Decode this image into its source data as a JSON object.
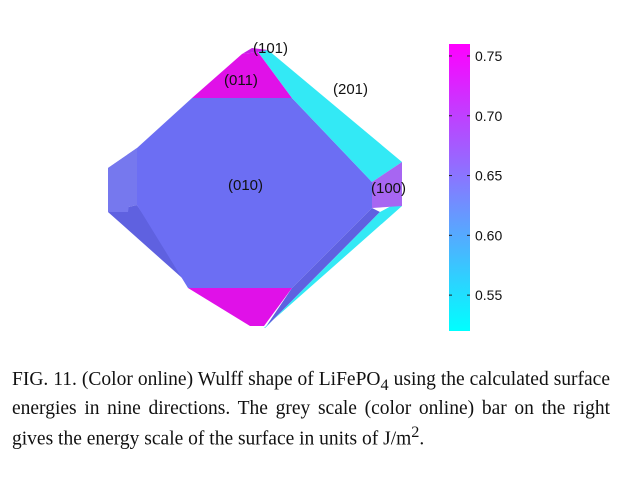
{
  "figure": {
    "facets": {
      "f010": "(010)",
      "f011": "(011)",
      "f101": "(101)",
      "f201": "(201)",
      "f100": "(100)"
    },
    "colors": {
      "facet_010": "#6c6ef3",
      "facet_011": "#e011e8",
      "facet_101": "#c61ee6",
      "facet_201": "#33e9f5",
      "facet_100": "#a766f2",
      "side_dark": "#5f61e0",
      "side_light": "#7678ee",
      "colorbar_top": "#ff00ff",
      "colorbar_bottom": "#00ffff"
    },
    "colorbar": {
      "min": 0.52,
      "max": 0.76,
      "ticks": [
        {
          "value": 0.75,
          "label": "0.75"
        },
        {
          "value": 0.7,
          "label": "0.70"
        },
        {
          "value": 0.65,
          "label": "0.65"
        },
        {
          "value": 0.6,
          "label": "0.60"
        },
        {
          "value": 0.55,
          "label": "0.55"
        }
      ]
    }
  },
  "caption": {
    "label": "FIG. 11.",
    "text_before_sub": " (Color online) Wulff shape of LiFePO",
    "subscript": "4",
    "text_after_sub": " using the calculated surface energies in nine directions. The grey scale (color online) bar on the right gives the energy scale of the surface in units of J/m",
    "superscript": "2",
    "end": "."
  }
}
